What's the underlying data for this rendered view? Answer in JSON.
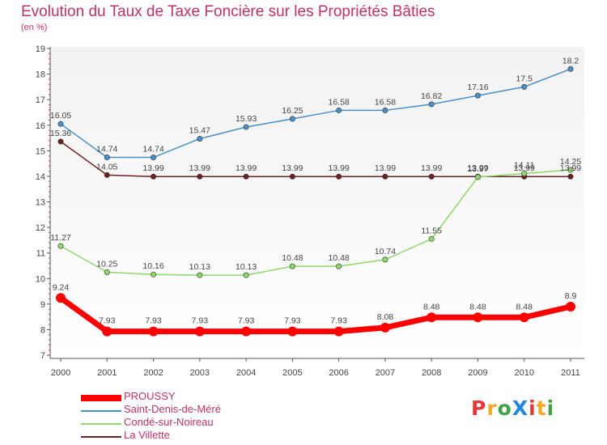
{
  "title": "Evolution du Taux de Taxe Foncière sur les Propriétés Bâties",
  "subtitle": "(en %)",
  "logo": {
    "text": "ProXiti",
    "letter_colors": [
      "#e53935",
      "#f9a825",
      "#43a047",
      "#1e88e5",
      "#e53935",
      "#f9a825",
      "#43a047"
    ]
  },
  "chart_data": {
    "type": "line",
    "x": [
      "2000",
      "2001",
      "2002",
      "2003",
      "2004",
      "2005",
      "2006",
      "2007",
      "2008",
      "2009",
      "2010",
      "2011"
    ],
    "ylim": [
      7,
      19
    ],
    "yticks": [
      7,
      8,
      9,
      10,
      11,
      12,
      13,
      14,
      15,
      16,
      17,
      18,
      19
    ],
    "grid": false,
    "legend_position": "bottom-left",
    "series": [
      {
        "name": "PROUSSY",
        "color": "#ff0000",
        "values": [
          9.24,
          7.93,
          7.93,
          7.93,
          7.93,
          7.93,
          7.93,
          8.08,
          8.48,
          8.48,
          8.48,
          8.9
        ],
        "labels": [
          "9.24",
          "7.93",
          "7.93",
          "7.93",
          "7.93",
          "7.93",
          "7.93",
          "8.08",
          "8.48",
          "8.48",
          "8.48",
          "8.9"
        ]
      },
      {
        "name": "Saint-Denis-de-Méré",
        "color": "#4a90c8",
        "values": [
          16.05,
          14.74,
          14.74,
          15.47,
          15.93,
          16.25,
          16.58,
          16.58,
          16.82,
          17.16,
          17.5,
          18.2
        ],
        "labels": [
          "16.05",
          "14.74",
          "14.74",
          "15.47",
          "15.93",
          "16.25",
          "16.58",
          "16.58",
          "16.82",
          "17.16",
          "17.5",
          "18.2"
        ]
      },
      {
        "name": "Condé-sur-Noireau",
        "color": "#8fd86a",
        "values": [
          11.27,
          10.25,
          10.16,
          10.13,
          10.13,
          10.48,
          10.48,
          10.74,
          11.55,
          13.97,
          14.11,
          14.25
        ],
        "labels": [
          "11.27",
          "10.25",
          "10.16",
          "10.13",
          "10.13",
          "10.48",
          "10.48",
          "10.74",
          "11.55",
          "13.97",
          "14.11",
          "14.25"
        ]
      },
      {
        "name": "La Villette",
        "color": "#6e2020",
        "values": [
          15.36,
          14.05,
          13.99,
          13.99,
          13.99,
          13.99,
          13.99,
          13.99,
          13.99,
          13.99,
          13.99,
          13.99
        ],
        "labels": [
          "15.36",
          "14.05",
          "13.99",
          "13.99",
          "13.99",
          "13.99",
          "13.99",
          "13.99",
          "13.99",
          "13.99",
          "13.99",
          "13.99"
        ]
      }
    ]
  }
}
